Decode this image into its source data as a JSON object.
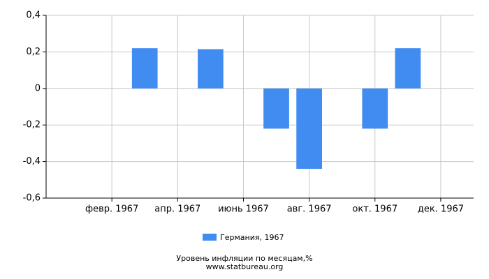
{
  "chart_data": {
    "type": "bar",
    "categories": [
      null,
      "февр. 1967",
      null,
      "апр. 1967",
      null,
      "июнь 1967",
      null,
      "авг. 1967",
      null,
      "окт. 1967",
      null,
      "дек. 1967"
    ],
    "series": [
      {
        "name": "Германия, 1967",
        "color": "#418cf0",
        "values": [
          0,
          0,
          0.22,
          0,
          0.215,
          0,
          -0.22,
          -0.44,
          0,
          -0.22,
          0.22,
          0
        ]
      }
    ],
    "ylim": [
      -0.6,
      0.4
    ],
    "yticks": [
      {
        "value": 0.4,
        "label": "0,4"
      },
      {
        "value": 0.2,
        "label": "0,2"
      },
      0,
      {
        "value": -0.2,
        "label": "-0,2"
      },
      {
        "value": -0.4,
        "label": "-0,4"
      },
      {
        "value": -0.6,
        "label": "-0,6"
      }
    ],
    "grid": true,
    "subtitle": "Уровень инфляции по месяцам,%",
    "source": "www.statbureau.org"
  }
}
